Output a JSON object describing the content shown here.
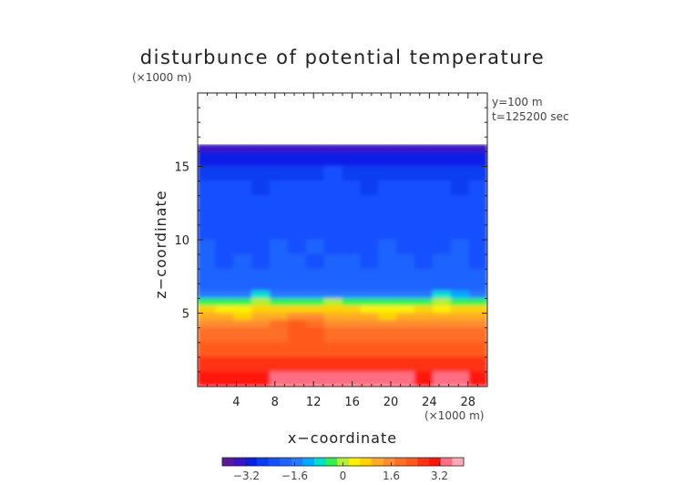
{
  "chart_data": {
    "type": "heatmap",
    "title": "disturbunce of potential temperature",
    "z_unit": "(×1000 m)",
    "x_unit": "(×1000 m)",
    "xlabel": "x−coordinate",
    "ylabel": "z−coordinate",
    "annotation_lines": [
      "y=100  m",
      "t=125200 sec"
    ],
    "x_ticks": [
      4,
      8,
      12,
      16,
      20,
      24,
      28
    ],
    "y_ticks": [
      5,
      10,
      15
    ],
    "xlim": [
      0,
      30
    ],
    "ylim": [
      0,
      20
    ],
    "domain_top_z": 16.5,
    "colorbar": {
      "range": [
        -4.0,
        4.0
      ],
      "tick_values": [
        -3.2,
        -1.6,
        0,
        1.6,
        3.2
      ],
      "tick_labels": [
        "−3.2",
        "−1.6",
        "0",
        "1.6",
        "3.2"
      ],
      "colors": [
        "#5a189a",
        "#3c14c8",
        "#0a1ee6",
        "#0a3cf0",
        "#1450ff",
        "#1e64ff",
        "#2878ff",
        "#00aaff",
        "#00e0c8",
        "#32f050",
        "#b4f032",
        "#fff000",
        "#ffd200",
        "#ffaa28",
        "#ff8c32",
        "#ff6e28",
        "#ff5a1e",
        "#ff3214",
        "#ff140a",
        "#ff6e82",
        "#ffaab4"
      ]
    },
    "rows_top_to_bottom": [
      {
        "z": 16.5,
        "values": [
          -3.3,
          -3.3,
          -3.3,
          -3.3,
          -3.3,
          -3.3,
          -3.3,
          -3.3,
          -3.3,
          -3.3,
          -3.3,
          -3.3,
          -3.3,
          -3.3,
          -3.3,
          -3.3
        ]
      },
      {
        "z": 16.0,
        "values": [
          -2.9,
          -2.9,
          -2.9,
          -2.9,
          -2.9,
          -2.9,
          -2.9,
          -2.9,
          -2.9,
          -2.9,
          -2.9,
          -2.9,
          -2.9,
          -2.9,
          -2.9,
          -2.9
        ]
      },
      {
        "z": 15.0,
        "values": [
          -2.6,
          -2.5,
          -2.6,
          -2.5,
          -2.5,
          -2.6,
          -2.5,
          -2.4,
          -2.5,
          -2.6,
          -2.5,
          -2.6,
          -2.5,
          -2.6,
          -2.5,
          -2.6
        ]
      },
      {
        "z": 14.0,
        "values": [
          -2.4,
          -2.4,
          -2.3,
          -2.5,
          -2.4,
          -2.4,
          -2.3,
          -2.4,
          -2.4,
          -2.5,
          -2.4,
          -2.3,
          -2.4,
          -2.4,
          -2.5,
          -2.4
        ]
      },
      {
        "z": 13.0,
        "values": [
          -2.3,
          -2.4,
          -2.3,
          -2.2,
          -2.3,
          -2.4,
          -2.3,
          -2.3,
          -2.4,
          -2.3,
          -2.2,
          -2.3,
          -2.4,
          -2.3,
          -2.3,
          -2.4
        ]
      },
      {
        "z": 12.0,
        "values": [
          -2.2,
          -2.3,
          -2.2,
          -2.3,
          -2.1,
          -2.2,
          -2.3,
          -2.2,
          -2.2,
          -2.3,
          -2.2,
          -2.1,
          -2.2,
          -2.3,
          -2.2,
          -2.2
        ]
      },
      {
        "z": 11.0,
        "values": [
          -2.1,
          -2.3,
          -2.4,
          -2.2,
          -2.1,
          -2.2,
          -2.1,
          -2.2,
          -2.3,
          -2.2,
          -2.1,
          -2.2,
          -2.3,
          -2.2,
          -2.1,
          -2.2
        ]
      },
      {
        "z": 10.0,
        "values": [
          -2.0,
          -2.2,
          -2.3,
          -2.1,
          -2.0,
          -2.1,
          -2.0,
          -2.1,
          -2.2,
          -2.1,
          -2.0,
          -2.1,
          -2.2,
          -2.1,
          -2.0,
          -2.1
        ]
      },
      {
        "z": 9.0,
        "values": [
          -2.0,
          -2.1,
          -2.0,
          -2.1,
          -2.0,
          -2.0,
          -2.1,
          -2.0,
          -2.0,
          -2.1,
          -2.0,
          -2.0,
          -2.1,
          -2.0,
          -2.0,
          -2.1
        ]
      },
      {
        "z": 8.0,
        "values": [
          -1.9,
          -2.0,
          -1.9,
          -2.0,
          -1.9,
          -1.9,
          -2.0,
          -1.9,
          -1.9,
          -2.0,
          -1.9,
          -2.0,
          -1.9,
          -2.0,
          -1.9,
          -1.9
        ]
      },
      {
        "z": 7.0,
        "values": [
          -1.9,
          -1.8,
          -1.9,
          -1.8,
          -1.9,
          -1.8,
          -1.9,
          -1.8,
          -1.9,
          -1.8,
          -1.9,
          -1.8,
          -1.9,
          -1.8,
          -1.9,
          -1.8
        ]
      },
      {
        "z": 6.5,
        "values": [
          -1.6,
          -1.5,
          -1.6,
          -0.8,
          -1.4,
          -1.6,
          -1.5,
          -1.6,
          -1.5,
          -1.6,
          -1.4,
          -1.6,
          -1.5,
          -0.6,
          -1.0,
          -1.5
        ]
      },
      {
        "z": 6.0,
        "values": [
          -0.4,
          -0.2,
          -0.5,
          -0.1,
          -0.3,
          -0.5,
          -0.4,
          0.1,
          -0.3,
          -0.2,
          -0.4,
          -0.2,
          -0.3,
          0.1,
          -0.5,
          -0.3
        ]
      },
      {
        "z": 5.5,
        "values": [
          0.7,
          0.4,
          0.3,
          0.6,
          0.8,
          0.9,
          0.9,
          0.8,
          0.6,
          0.5,
          0.3,
          0.5,
          0.6,
          0.4,
          0.6,
          0.8
        ]
      },
      {
        "z": 5.0,
        "values": [
          1.2,
          1.1,
          0.9,
          1.0,
          1.3,
          1.5,
          1.4,
          1.3,
          1.2,
          1.0,
          0.9,
          1.1,
          1.2,
          1.0,
          1.1,
          1.3
        ]
      },
      {
        "z": 4.5,
        "values": [
          1.6,
          1.5,
          1.4,
          1.5,
          1.8,
          2.2,
          2.0,
          1.7,
          1.6,
          1.5,
          1.5,
          1.6,
          1.7,
          1.6,
          1.6,
          1.7
        ]
      },
      {
        "z": 4.0,
        "values": [
          1.9,
          1.9,
          1.8,
          1.9,
          2.0,
          2.3,
          2.1,
          2.0,
          1.9,
          1.9,
          1.9,
          2.0,
          2.0,
          1.9,
          1.9,
          2.0
        ]
      },
      {
        "z": 3.0,
        "values": [
          2.2,
          2.1,
          2.2,
          2.2,
          2.3,
          2.3,
          2.3,
          2.2,
          2.2,
          2.3,
          2.2,
          2.3,
          2.2,
          2.2,
          2.3,
          2.2
        ]
      },
      {
        "z": 2.0,
        "values": [
          2.6,
          2.5,
          2.6,
          2.6,
          2.7,
          2.6,
          2.7,
          2.6,
          2.7,
          2.7,
          2.6,
          2.7,
          2.6,
          2.6,
          2.7,
          2.6
        ]
      },
      {
        "z": 1.0,
        "values": [
          3.1,
          3.0,
          3.1,
          3.2,
          3.3,
          3.3,
          3.4,
          3.3,
          3.4,
          3.4,
          3.3,
          3.3,
          3.2,
          3.3,
          3.3,
          3.2
        ]
      },
      {
        "z": 0.0,
        "values": [
          3.5,
          3.4,
          3.5,
          3.6,
          3.7,
          3.7,
          3.8,
          3.7,
          3.8,
          3.8,
          3.7,
          3.7,
          3.6,
          3.7,
          3.7,
          3.6
        ]
      }
    ]
  }
}
